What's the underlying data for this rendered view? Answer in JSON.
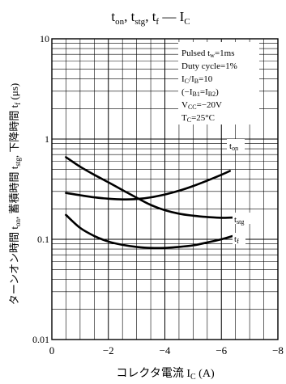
{
  "chart_data": {
    "type": "line",
    "title": "t_on, t_stg, t_f — I_C",
    "xlabel": "コレクタ電流 I_C (A)",
    "ylabel": "ターンオン時間 t_on, 蓄積時間 t_stg, 下降時間 t_f (μs)",
    "x_scale": "linear",
    "y_scale": "log",
    "xlim": [
      0,
      -8
    ],
    "ylim": [
      0.01,
      10
    ],
    "x_ticks": [
      {
        "value": 0,
        "label": "0"
      },
      {
        "value": -2,
        "label": "−2"
      },
      {
        "value": -4,
        "label": "−4"
      },
      {
        "value": -6,
        "label": "−6"
      },
      {
        "value": -8,
        "label": "−8"
      }
    ],
    "y_ticks": [
      {
        "value": 10,
        "label": "10"
      },
      {
        "value": 1,
        "label": "1"
      },
      {
        "value": 0.1,
        "label": "0.1"
      },
      {
        "value": 0.01,
        "label": "0.01"
      }
    ],
    "grid": true,
    "conditions": [
      "Pulsed t_w=1ms",
      "Duty cycle=1%",
      "I_C/I_B=10",
      "(−I_B1=I_B2)",
      "V_CC=−20V",
      "T_C=25°C"
    ],
    "series": [
      {
        "name": "t_on",
        "label": "ton",
        "x": [
          -0.5,
          -1.0,
          -1.5,
          -2.0,
          -2.5,
          -3.0,
          -3.5,
          -4.0,
          -4.5,
          -5.0,
          -5.5,
          -6.0,
          -6.3
        ],
        "y": [
          0.29,
          0.275,
          0.262,
          0.254,
          0.25,
          0.252,
          0.262,
          0.28,
          0.305,
          0.34,
          0.385,
          0.44,
          0.48
        ]
      },
      {
        "name": "t_stg",
        "label": "tstg",
        "x": [
          -0.5,
          -1.0,
          -1.5,
          -2.0,
          -2.5,
          -3.0,
          -3.5,
          -4.0,
          -4.5,
          -5.0,
          -5.5,
          -6.0,
          -6.5
        ],
        "y": [
          0.66,
          0.53,
          0.44,
          0.37,
          0.31,
          0.26,
          0.22,
          0.195,
          0.18,
          0.172,
          0.167,
          0.164,
          0.165
        ]
      },
      {
        "name": "t_f",
        "label": "tf",
        "x": [
          -0.5,
          -1.0,
          -1.5,
          -2.0,
          -2.5,
          -3.0,
          -3.5,
          -4.0,
          -4.5,
          -5.0,
          -5.5,
          -6.0,
          -6.5
        ],
        "y": [
          0.175,
          0.13,
          0.108,
          0.095,
          0.088,
          0.084,
          0.082,
          0.082,
          0.084,
          0.087,
          0.093,
          0.1,
          0.11
        ]
      }
    ]
  }
}
